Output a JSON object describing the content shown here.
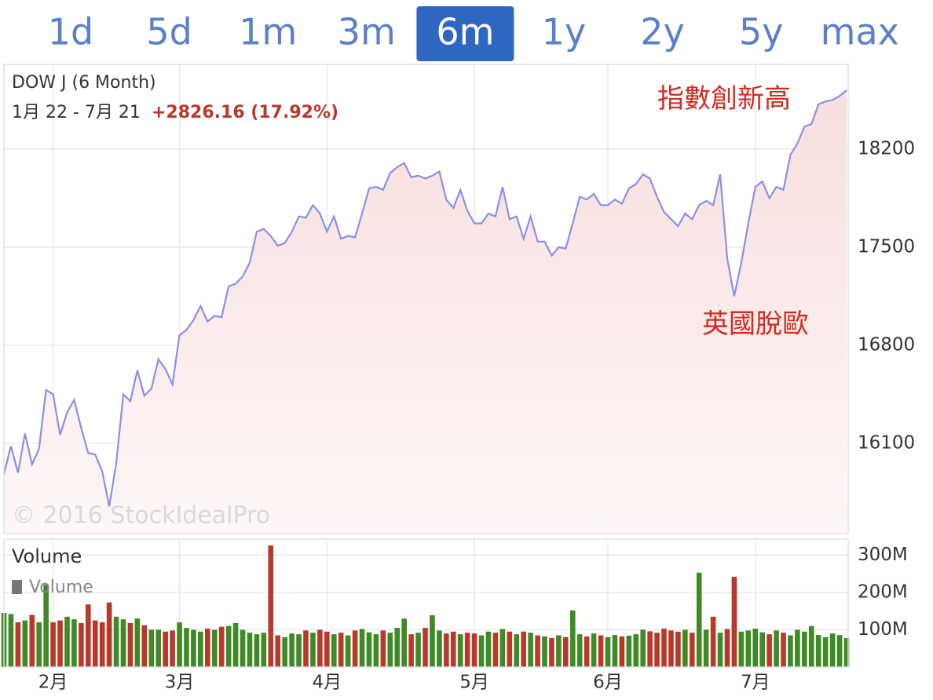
{
  "tabs": [
    "1d",
    "5d",
    "1m",
    "3m",
    "6m",
    "1y",
    "2y",
    "5y",
    "max"
  ],
  "selected_tab": 4,
  "chart_data": [
    {
      "type": "line",
      "title": "DOW J (6 Month)",
      "subtitle": "1月 22 - 7月 21",
      "change": "+2826.16 (17.92%)",
      "watermark": "© 2016 StockIdealPro",
      "annotations": [
        "指數創新高",
        "英國脫歐"
      ],
      "color": "#8b8fe6",
      "change_color": "#b8392a",
      "annotation_color": "#d42a1f",
      "grid": true,
      "ylim": [
        15455,
        18805
      ],
      "yticks": [
        16100,
        16800,
        17500,
        18200
      ],
      "values": [
        15880,
        16080,
        15890,
        16170,
        15950,
        16060,
        16480,
        16450,
        16160,
        16320,
        16410,
        16210,
        16030,
        16020,
        15900,
        15650,
        15960,
        16450,
        16400,
        16620,
        16440,
        16490,
        16700,
        16630,
        16520,
        16870,
        16910,
        16980,
        17080,
        16970,
        17010,
        17000,
        17220,
        17240,
        17290,
        17390,
        17610,
        17630,
        17580,
        17510,
        17530,
        17610,
        17720,
        17710,
        17800,
        17740,
        17610,
        17720,
        17560,
        17580,
        17570,
        17740,
        17920,
        17930,
        17910,
        18030,
        18070,
        18100,
        18000,
        18010,
        17990,
        18010,
        18040,
        17840,
        17780,
        17910,
        17760,
        17670,
        17670,
        17740,
        17720,
        17930,
        17700,
        17720,
        17560,
        17720,
        17540,
        17540,
        17440,
        17500,
        17490,
        17670,
        17860,
        17840,
        17880,
        17800,
        17800,
        17840,
        17810,
        17920,
        17950,
        18020,
        17990,
        17860,
        17750,
        17700,
        17650,
        17740,
        17700,
        17800,
        17830,
        17800,
        18020,
        17420,
        17150,
        17390,
        17670,
        17930,
        17970,
        17850,
        17930,
        17910,
        18160,
        18240,
        18360,
        18380,
        18520,
        18540,
        18550,
        18580,
        18620
      ]
    },
    {
      "type": "bar",
      "title": "Volume",
      "up_color": "#3f8a24",
      "down_color": "#b8392a",
      "legend_color": "#777777",
      "grid": true,
      "ylim": [
        0,
        343
      ],
      "yticks": [
        {
          "value": 100,
          "label": "100M"
        },
        {
          "value": 200,
          "label": "200M"
        },
        {
          "value": 300,
          "label": "300M"
        }
      ],
      "categories": [
        null,
        null,
        null,
        null,
        null,
        null,
        null,
        "2月",
        null,
        null,
        null,
        null,
        null,
        null,
        null,
        null,
        null,
        null,
        null,
        null,
        null,
        null,
        null,
        null,
        null,
        "3月",
        null,
        null,
        null,
        null,
        null,
        null,
        null,
        null,
        null,
        null,
        null,
        null,
        null,
        null,
        null,
        null,
        null,
        null,
        null,
        null,
        "4月",
        null,
        null,
        null,
        null,
        null,
        null,
        null,
        null,
        null,
        null,
        null,
        null,
        null,
        null,
        null,
        null,
        null,
        null,
        null,
        null,
        "5月",
        null,
        null,
        null,
        null,
        null,
        null,
        null,
        null,
        null,
        null,
        null,
        null,
        null,
        null,
        null,
        null,
        null,
        null,
        "6月",
        null,
        null,
        null,
        null,
        null,
        null,
        null,
        null,
        null,
        null,
        null,
        null,
        null,
        null,
        null,
        null,
        null,
        null,
        null,
        null,
        "7月",
        null,
        null,
        null,
        null,
        null,
        null,
        null,
        null,
        null,
        null,
        null,
        null,
        null
      ],
      "series": [
        {
          "name": "Volume",
          "values": [
            145,
            142,
            120,
            125,
            140,
            120,
            221,
            120,
            125,
            135,
            128,
            118,
            168,
            125,
            120,
            173,
            135,
            128,
            118,
            130,
            112,
            100,
            100,
            95,
            98,
            120,
            105,
            100,
            95,
            103,
            100,
            108,
            110,
            118,
            100,
            92,
            88,
            92,
            326,
            85,
            80,
            90,
            88,
            98,
            92,
            100,
            95,
            88,
            92,
            85,
            98,
            102,
            93,
            88,
            98,
            92,
            105,
            130,
            88,
            92,
            105,
            139,
            98,
            90,
            95,
            88,
            92,
            90,
            85,
            95,
            92,
            102,
            95,
            88,
            95,
            92,
            85,
            82,
            78,
            85,
            80,
            152,
            88,
            82,
            90,
            85,
            80,
            86,
            82,
            84,
            88,
            100,
            96,
            92,
            103,
            98,
            95,
            100,
            92,
            253,
            100,
            135,
            92,
            102,
            242,
            95,
            98,
            103,
            93,
            88,
            98,
            92,
            85,
            100,
            95,
            110,
            86,
            80,
            90,
            86,
            78
          ]
        }
      ]
    }
  ]
}
